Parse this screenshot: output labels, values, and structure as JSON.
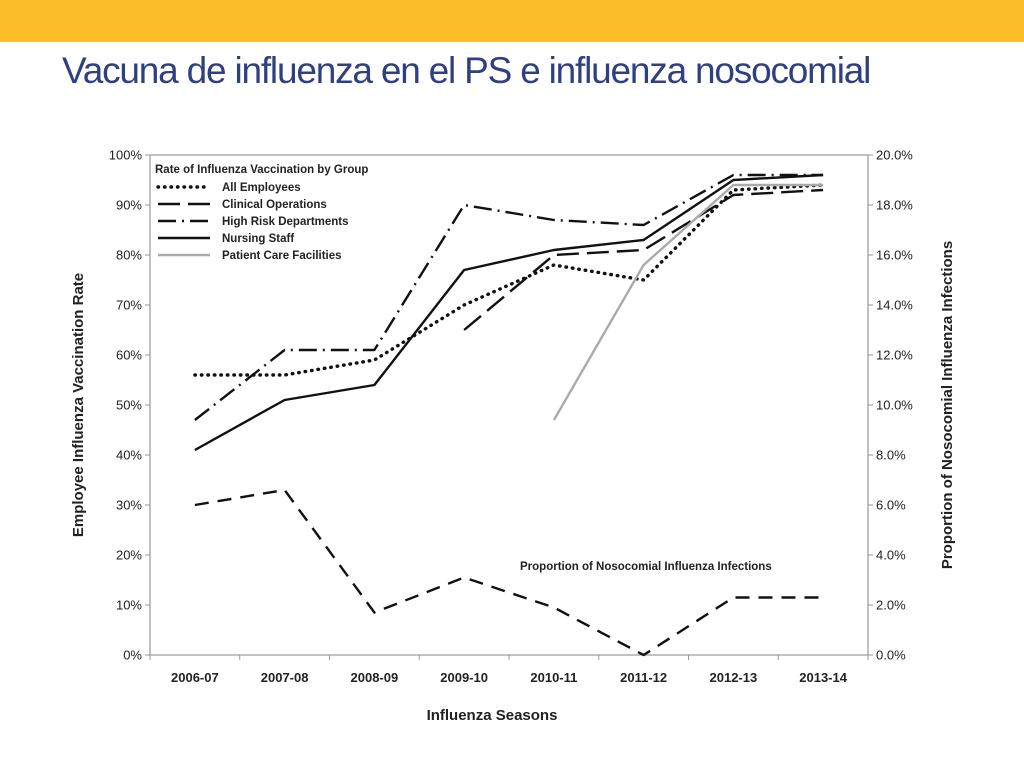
{
  "slide": {
    "title": "Vacuna de influenza en el PS e influenza nosocomial",
    "title_color": "#2e3f82",
    "bar_color": "#fbbd2a"
  },
  "chart_data": {
    "type": "line",
    "categories": [
      "2006-07",
      "2007-08",
      "2008-09",
      "2009-10",
      "2010-11",
      "2011-12",
      "2012-13",
      "2013-14"
    ],
    "xlabel": "Influenza Seasons",
    "ylabel": "Employee Influenza Vaccination Rate",
    "y2label": "Proportion of Nosocomial Influenza Infections",
    "ylim": [
      0,
      100
    ],
    "y2lim": [
      0,
      20
    ],
    "yticks": [
      "0%",
      "10%",
      "20%",
      "30%",
      "40%",
      "50%",
      "60%",
      "70%",
      "80%",
      "90%",
      "100%"
    ],
    "y2ticks": [
      "0.0%",
      "2.0%",
      "4.0%",
      "6.0%",
      "8.0%",
      "10.0%",
      "12.0%",
      "14.0%",
      "16.0%",
      "18.0%",
      "20.0%"
    ],
    "legend_title": "Rate of Influenza Vaccination by Group",
    "legend_position": "top-left",
    "grid": false,
    "series": [
      {
        "name": "All Employees",
        "axis": "left",
        "style": "dotted",
        "color": "#111111",
        "values": [
          56,
          56,
          59,
          70,
          78,
          75,
          93,
          94
        ]
      },
      {
        "name": "Clinical Operations",
        "axis": "left",
        "style": "long-dash",
        "color": "#111111",
        "values": [
          null,
          null,
          null,
          65,
          80,
          81,
          92,
          93
        ]
      },
      {
        "name": "High Risk Departments",
        "axis": "left",
        "style": "dash-dot",
        "color": "#111111",
        "values": [
          47,
          61,
          61,
          90,
          87,
          86,
          96,
          96
        ]
      },
      {
        "name": "Nursing Staff",
        "axis": "left",
        "style": "solid",
        "color": "#111111",
        "values": [
          41,
          51,
          54,
          77,
          81,
          83,
          95,
          96
        ]
      },
      {
        "name": "Patient Care Facilities",
        "axis": "left",
        "style": "solid",
        "color": "#aaaaaa",
        "values": [
          null,
          null,
          null,
          null,
          47,
          78,
          94,
          94
        ]
      },
      {
        "axis": "right",
        "style": "dash",
        "color": "#111111",
        "values": [
          6.0,
          6.6,
          1.7,
          3.1,
          1.9,
          0.0,
          2.3,
          2.3
        ]
      }
    ],
    "annotation": "Proportion of Nosocomial  Influenza Infections"
  }
}
